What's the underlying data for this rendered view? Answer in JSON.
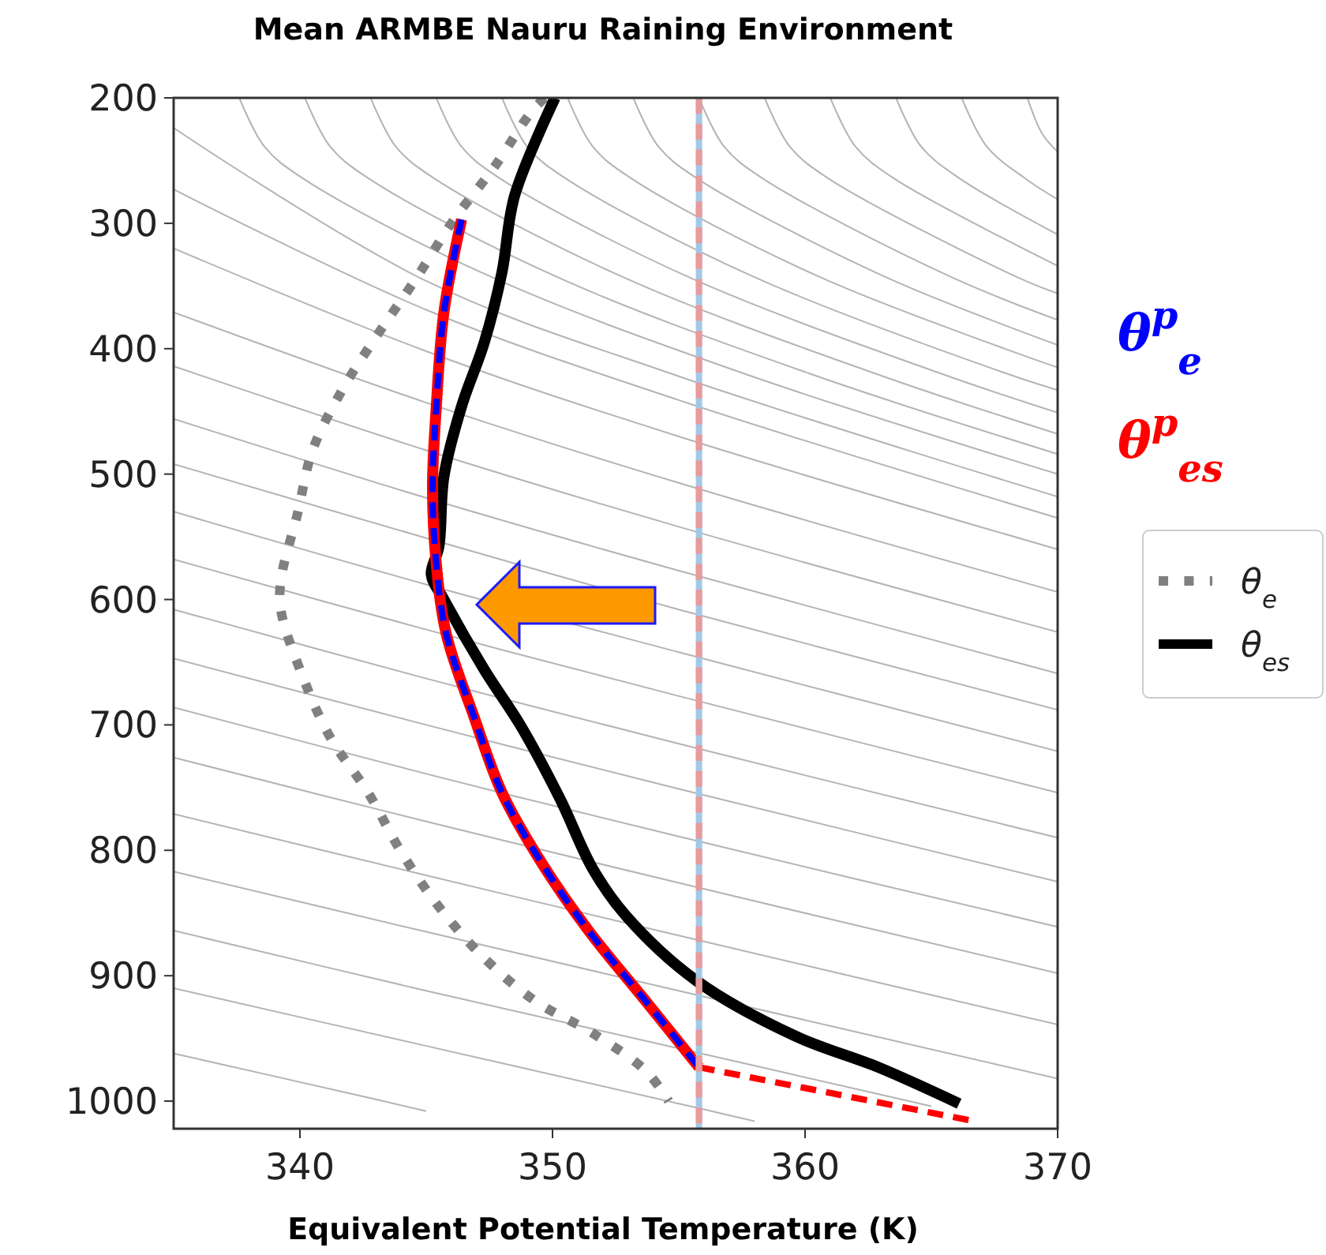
{
  "chart_data": {
    "type": "line",
    "title": "Mean ARMBE Nauru Raining Environment",
    "xlabel": "Equivalent Potential Temperature (K)",
    "xlim": [
      335,
      370
    ],
    "xticks": [
      340,
      350,
      360,
      370
    ],
    "ylim": [
      1022,
      200
    ],
    "yticks": [
      200,
      300,
      400,
      500,
      600,
      700,
      800,
      900,
      1000
    ],
    "grid": false,
    "legend": "right",
    "ref_lines": [
      {
        "axis": "x",
        "value": 355.8,
        "color": "#a3c8e6",
        "line_style": "solid"
      },
      {
        "axis": "x",
        "value": 355.8,
        "color": "#e89a9c",
        "line_style": "dashed"
      }
    ],
    "series": [
      {
        "color": "#b4b4b4",
        "line_style": "solid",
        "x": [
          335,
          345,
          355,
          370
        ],
        "values": [
          224,
          346,
          422,
          518
        ]
      },
      {
        "color": "#b4b4b4",
        "line_style": "solid",
        "x": [
          335,
          345,
          355,
          370
        ],
        "values": [
          273,
          369,
          441,
          535
        ]
      },
      {
        "color": "#b4b4b4",
        "line_style": "solid",
        "x": [
          335,
          345,
          355,
          370
        ],
        "values": [
          320,
          402,
          470,
          560
        ]
      },
      {
        "color": "#b4b4b4",
        "line_style": "solid",
        "x": [
          335,
          345,
          355,
          370
        ],
        "values": [
          371,
          443,
          507,
          594
        ]
      },
      {
        "color": "#b4b4b4",
        "line_style": "solid",
        "x": [
          335,
          345,
          355,
          370
        ],
        "values": [
          414,
          481,
          542,
          626
        ]
      },
      {
        "color": "#b4b4b4",
        "line_style": "solid",
        "x": [
          335,
          345,
          355,
          370
        ],
        "values": [
          456,
          519,
          577,
          659
        ]
      },
      {
        "color": "#b4b4b4",
        "line_style": "solid",
        "x": [
          335,
          345,
          355,
          370
        ],
        "values": [
          492,
          551,
          608,
          688
        ]
      },
      {
        "color": "#b4b4b4",
        "line_style": "solid",
        "x": [
          335,
          345,
          355,
          370
        ],
        "values": [
          530,
          588,
          642,
          721
        ]
      },
      {
        "color": "#b4b4b4",
        "line_style": "solid",
        "x": [
          335,
          345,
          355,
          370
        ],
        "values": [
          568,
          624,
          677,
          754
        ]
      },
      {
        "color": "#b4b4b4",
        "line_style": "solid",
        "x": [
          335,
          345,
          355,
          370
        ],
        "values": [
          608,
          663,
          715,
          790
        ]
      },
      {
        "color": "#b4b4b4",
        "line_style": "solid",
        "x": [
          335,
          345,
          355,
          370
        ],
        "values": [
          647,
          700,
          751,
          825
        ]
      },
      {
        "color": "#b4b4b4",
        "line_style": "solid",
        "x": [
          335,
          345,
          355,
          370
        ],
        "values": [
          686,
          739,
          789,
          861
        ]
      },
      {
        "color": "#b4b4b4",
        "line_style": "solid",
        "x": [
          335,
          345,
          355,
          370
        ],
        "values": [
          726,
          777,
          826,
          898
        ]
      },
      {
        "color": "#b4b4b4",
        "line_style": "solid",
        "x": [
          335,
          345,
          355,
          370
        ],
        "values": [
          771,
          820,
          868,
          939
        ]
      },
      {
        "color": "#b4b4b4",
        "line_style": "solid",
        "x": [
          335,
          345,
          355,
          370
        ],
        "values": [
          817,
          865,
          912,
          982
        ]
      },
      {
        "color": "#b4b4b4",
        "line_style": "solid",
        "x": [
          335,
          345,
          355,
          365
        ],
        "values": [
          864,
          912,
          958,
          1004
        ]
      },
      {
        "color": "#b4b4b4",
        "line_style": "solid",
        "x": [
          335,
          345,
          355,
          358
        ],
        "values": [
          910,
          956,
          1002,
          1016
        ]
      },
      {
        "color": "#b4b4b4",
        "line_style": "solid",
        "x": [
          335,
          342,
          345
        ],
        "values": [
          962,
          994,
          1008
        ]
      },
      {
        "color": "#b4b4b4",
        "line_style": "solid",
        "x": [
          337.6,
          338.6,
          340.1,
          347.6,
          357.6,
          370
        ],
        "values": [
          200,
          239,
          264,
          343,
          420,
          500
        ]
      },
      {
        "color": "#b4b4b4",
        "line_style": "solid",
        "x": [
          340.2,
          341.2,
          342.7,
          350.2,
          360.2,
          370
        ],
        "values": [
          200,
          239,
          264,
          343,
          420,
          484
        ]
      },
      {
        "color": "#b4b4b4",
        "line_style": "solid",
        "x": [
          342.8,
          343.8,
          345.3,
          352.8,
          362.8,
          370
        ],
        "values": [
          200,
          239,
          264,
          343,
          420,
          468
        ]
      },
      {
        "color": "#b4b4b4",
        "line_style": "solid",
        "x": [
          345.4,
          346.4,
          347.9,
          355.4,
          365.4,
          370
        ],
        "values": [
          200,
          239,
          264,
          343,
          420,
          451
        ]
      },
      {
        "color": "#b4b4b4",
        "line_style": "solid",
        "x": [
          348.0,
          349.0,
          350.5,
          358.0,
          368.0,
          370
        ],
        "values": [
          200,
          239,
          264,
          343,
          420,
          433
        ]
      },
      {
        "color": "#b4b4b4",
        "line_style": "solid",
        "x": [
          350.6,
          351.6,
          353.1,
          360.6,
          370
        ],
        "values": [
          200,
          239,
          264,
          343,
          415
        ]
      },
      {
        "color": "#b4b4b4",
        "line_style": "solid",
        "x": [
          353.2,
          354.2,
          355.7,
          363.2,
          370
        ],
        "values": [
          200,
          239,
          264,
          343,
          397
        ]
      },
      {
        "color": "#b4b4b4",
        "line_style": "solid",
        "x": [
          355.8,
          356.8,
          358.3,
          365.8,
          370
        ],
        "values": [
          200,
          239,
          264,
          343,
          377
        ]
      },
      {
        "color": "#b4b4b4",
        "line_style": "solid",
        "x": [
          358.4,
          359.4,
          360.9,
          368.4,
          370
        ],
        "values": [
          200,
          239,
          264,
          343,
          356
        ]
      },
      {
        "color": "#b4b4b4",
        "line_style": "solid",
        "x": [
          361.0,
          362.0,
          363.5,
          370
        ],
        "values": [
          200,
          239,
          264,
          334
        ]
      },
      {
        "color": "#b4b4b4",
        "line_style": "solid",
        "x": [
          363.6,
          364.6,
          366.1,
          370
        ],
        "values": [
          200,
          239,
          264,
          309
        ]
      },
      {
        "color": "#b4b4b4",
        "line_style": "solid",
        "x": [
          366.2,
          367.2,
          368.7,
          370
        ],
        "values": [
          200,
          239,
          264,
          281
        ]
      },
      {
        "color": "#b4b4b4",
        "line_style": "solid",
        "x": [
          368.8,
          369.4,
          370
        ],
        "values": [
          200,
          229,
          243
        ]
      },
      {
        "name": "θ$_{e}$",
        "color": "#808080",
        "line_style": "dotted",
        "x": [
          349.7,
          349.2,
          347.7,
          346.1,
          344.6,
          343.1,
          341.7,
          340.5,
          339.9,
          339.25,
          339.25,
          340.1,
          341.2,
          342.7,
          344.0,
          345.5,
          347.25,
          349.3,
          351.6,
          353.7,
          354.6
        ],
        "values": [
          200,
          210,
          255,
          297,
          344,
          388,
          432,
          481,
          532,
          584,
          609,
          661,
          710,
          754,
          801,
          845,
          885,
          920,
          946,
          976,
          1000
        ]
      },
      {
        "name": "θ$_{es}$",
        "color": "#000000",
        "line_style": "solid",
        "x": [
          350.1,
          348.5,
          348.0,
          347.3,
          346.4,
          345.7,
          345.5,
          345.2,
          345.7,
          347.3,
          348.75,
          350.3,
          351.6,
          352.9,
          355.7,
          359.6,
          362.9,
          366.1
        ],
        "values": [
          200,
          278,
          339,
          395,
          446,
          502,
          558,
          580,
          600,
          656,
          701,
          759,
          815,
          852,
          904,
          948,
          973,
          1002
        ]
      },
      {
        "name": "θ$^{p}$$_{es}$",
        "color": "#ff0000",
        "line_style": "solid",
        "x": [
          346.4,
          345.7,
          345.4,
          345.25,
          345.4,
          345.8,
          346.9,
          348.0,
          349.6,
          351.5,
          353.6,
          355.8
        ],
        "values": [
          297,
          371,
          446,
          511,
          572,
          628,
          694,
          754,
          811,
          866,
          918,
          973
        ]
      },
      {
        "name": "θ$^{p}$$_{e}$",
        "color": "#0000ff",
        "line_style": "dashed",
        "x": [
          346.4,
          345.7,
          345.4,
          345.25,
          345.4,
          345.8,
          346.9,
          348.0,
          349.6,
          351.5,
          353.6,
          355.8
        ],
        "values": [
          297,
          371,
          446,
          511,
          572,
          628,
          694,
          754,
          811,
          866,
          918,
          973
        ]
      },
      {
        "color": "#ff0000",
        "line_style": "dashed",
        "x": [
          355.8,
          366.7
        ],
        "values": [
          973,
          1016
        ]
      }
    ]
  }
}
